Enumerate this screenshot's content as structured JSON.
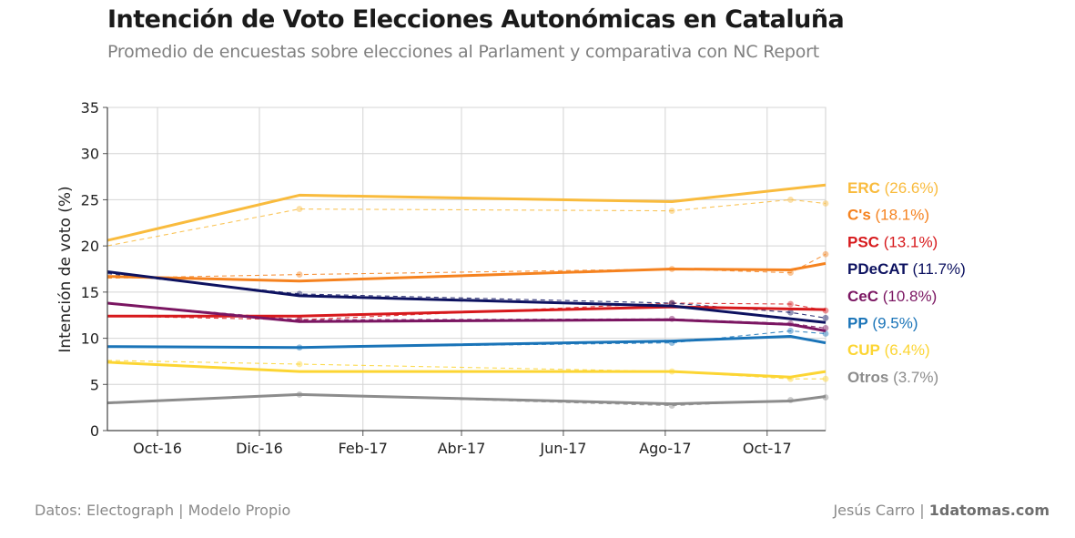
{
  "header": {
    "title": "Intención de Voto Elecciones Autonómicas en Cataluña",
    "subtitle": "Promedio de encuestas sobre elecciones al Parlament y comparativa con NC Report"
  },
  "footer": {
    "source": "Datos: Electograph | Modelo Propio",
    "author": "Jesús Carro | ",
    "site": "1datomas.com"
  },
  "chart_data": {
    "type": "line",
    "title": "Intención de Voto Elecciones Autonómicas en Cataluña",
    "subtitle": "Promedio de encuestas sobre elecciones al Parlament y comparativa con NC Report",
    "ylabel": "Intención de voto (%)",
    "xlabel": "",
    "ylim": [
      0,
      35
    ],
    "yticks": [
      0,
      5,
      10,
      15,
      20,
      25,
      30,
      35
    ],
    "xlim": [
      "2016-09-01",
      "2017-11-05"
    ],
    "xticks": [
      {
        "date": "2016-10-01",
        "label": "Oct-16"
      },
      {
        "date": "2016-12-01",
        "label": "Dic-16"
      },
      {
        "date": "2017-02-01",
        "label": "Feb-17"
      },
      {
        "date": "2017-04-01",
        "label": "Abr-17"
      },
      {
        "date": "2017-06-01",
        "label": "Jun-17"
      },
      {
        "date": "2017-08-01",
        "label": "Ago-17"
      },
      {
        "date": "2017-10-01",
        "label": "Oct-17"
      }
    ],
    "grid": true,
    "legend": "right",
    "series": [
      {
        "name": "ERC",
        "label_value": "(26.6%)",
        "color": "#f9bb3d",
        "average": [
          [
            "2016-09-01",
            20.6
          ],
          [
            "2016-12-25",
            25.5
          ],
          [
            "2017-08-05",
            24.8
          ],
          [
            "2017-11-05",
            26.6
          ]
        ],
        "nc_report": [
          [
            "2016-09-01",
            20.0
          ],
          [
            "2016-12-25",
            24.0
          ],
          [
            "2017-08-05",
            23.8
          ],
          [
            "2017-10-15",
            25.0
          ],
          [
            "2017-11-05",
            24.6
          ]
        ]
      },
      {
        "name": "C's",
        "label_value": "(18.1%)",
        "color": "#f5821f",
        "average": [
          [
            "2016-09-01",
            16.7
          ],
          [
            "2016-12-25",
            16.2
          ],
          [
            "2017-08-05",
            17.5
          ],
          [
            "2017-10-15",
            17.4
          ],
          [
            "2017-11-05",
            18.1
          ]
        ],
        "nc_report": [
          [
            "2016-09-01",
            16.5
          ],
          [
            "2016-12-25",
            16.9
          ],
          [
            "2017-08-05",
            17.5
          ],
          [
            "2017-10-15",
            17.1
          ],
          [
            "2017-11-05",
            19.1
          ]
        ]
      },
      {
        "name": "PSC",
        "label_value": "(13.1%)",
        "color": "#d7191c",
        "average": [
          [
            "2016-09-01",
            12.4
          ],
          [
            "2016-12-25",
            12.4
          ],
          [
            "2017-08-05",
            13.4
          ],
          [
            "2017-11-05",
            13.1
          ]
        ],
        "nc_report": [
          [
            "2016-09-01",
            12.4
          ],
          [
            "2016-12-25",
            12.0
          ],
          [
            "2017-08-05",
            13.8
          ],
          [
            "2017-10-15",
            13.7
          ],
          [
            "2017-11-05",
            13.0
          ]
        ]
      },
      {
        "name": "PDeCAT",
        "label_value": "(11.7%)",
        "color": "#0d1260",
        "average": [
          [
            "2016-09-01",
            17.2
          ],
          [
            "2016-12-25",
            14.6
          ],
          [
            "2017-08-05",
            13.5
          ],
          [
            "2017-11-05",
            11.7
          ]
        ],
        "nc_report": [
          [
            "2016-09-01",
            17.0
          ],
          [
            "2016-12-25",
            14.8
          ],
          [
            "2017-08-05",
            13.8
          ],
          [
            "2017-10-15",
            12.8
          ],
          [
            "2017-11-05",
            12.2
          ]
        ]
      },
      {
        "name": "CeC",
        "label_value": "(10.8%)",
        "color": "#7b1662",
        "average": [
          [
            "2016-09-01",
            13.8
          ],
          [
            "2016-12-25",
            11.8
          ],
          [
            "2017-08-05",
            12.0
          ],
          [
            "2017-10-15",
            11.5
          ],
          [
            "2017-11-05",
            10.8
          ]
        ],
        "nc_report": [
          [
            "2016-09-01",
            13.8
          ],
          [
            "2016-12-25",
            12.0
          ],
          [
            "2017-08-05",
            12.1
          ],
          [
            "2017-10-15",
            11.6
          ],
          [
            "2017-11-05",
            11.1
          ]
        ]
      },
      {
        "name": "PP",
        "label_value": "(9.5%)",
        "color": "#1a74b8",
        "average": [
          [
            "2016-09-01",
            9.1
          ],
          [
            "2016-12-25",
            9.0
          ],
          [
            "2017-08-05",
            9.7
          ],
          [
            "2017-10-15",
            10.2
          ],
          [
            "2017-11-05",
            9.5
          ]
        ],
        "nc_report": [
          [
            "2016-09-01",
            9.1
          ],
          [
            "2016-12-25",
            9.0
          ],
          [
            "2017-08-05",
            9.5
          ],
          [
            "2017-10-15",
            10.8
          ],
          [
            "2017-11-05",
            10.5
          ]
        ]
      },
      {
        "name": "CUP",
        "label_value": "(6.4%)",
        "color": "#fcd533",
        "average": [
          [
            "2016-09-01",
            7.4
          ],
          [
            "2016-12-25",
            6.4
          ],
          [
            "2017-08-05",
            6.4
          ],
          [
            "2017-10-15",
            5.8
          ],
          [
            "2017-11-05",
            6.4
          ]
        ],
        "nc_report": [
          [
            "2016-09-01",
            7.6
          ],
          [
            "2016-12-25",
            7.2
          ],
          [
            "2017-08-05",
            6.4
          ],
          [
            "2017-10-15",
            5.6
          ],
          [
            "2017-11-05",
            5.6
          ]
        ]
      },
      {
        "name": "Otros",
        "label_value": "(3.7%)",
        "color": "#8c8c8c",
        "average": [
          [
            "2016-09-01",
            3.0
          ],
          [
            "2016-12-25",
            3.9
          ],
          [
            "2017-08-05",
            2.9
          ],
          [
            "2017-10-15",
            3.2
          ],
          [
            "2017-11-05",
            3.7
          ]
        ],
        "nc_report": [
          [
            "2016-09-01",
            3.0
          ],
          [
            "2016-12-25",
            3.9
          ],
          [
            "2017-08-05",
            2.7
          ],
          [
            "2017-10-15",
            3.3
          ],
          [
            "2017-11-05",
            3.6
          ]
        ]
      }
    ]
  }
}
